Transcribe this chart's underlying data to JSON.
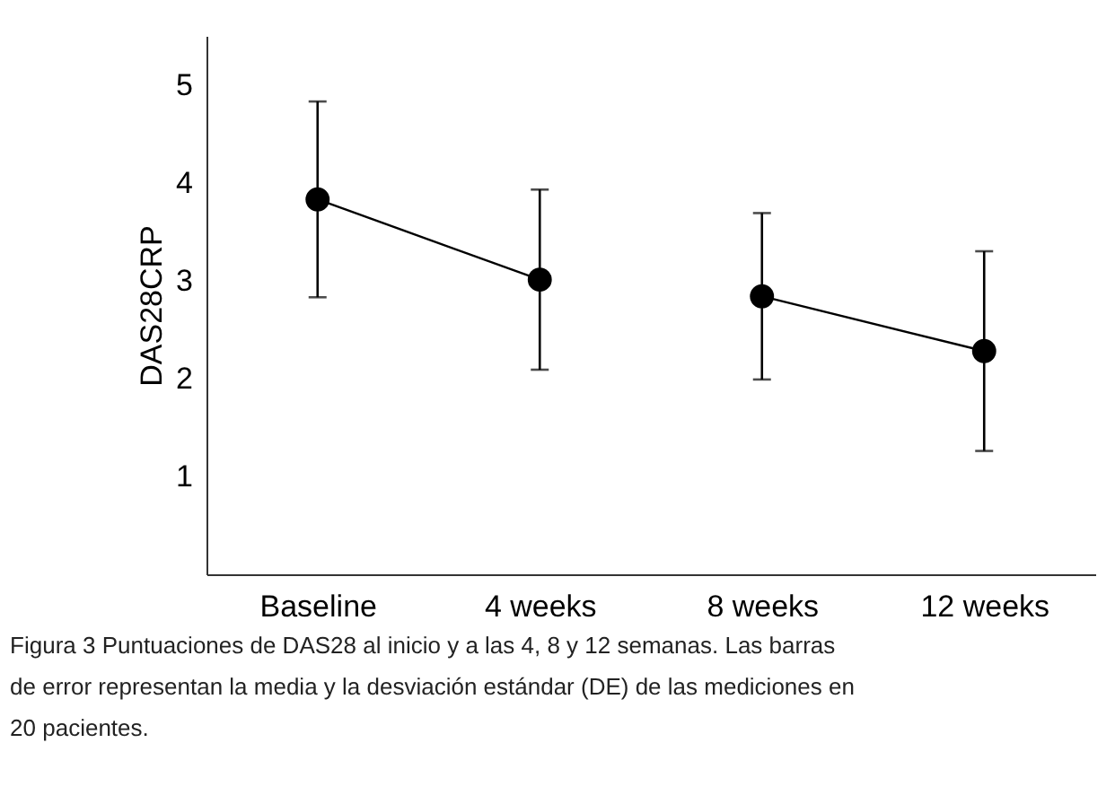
{
  "chart_data": {
    "type": "line",
    "ylabel": "DAS28CRP",
    "categories": [
      "Baseline",
      "4 weeks",
      "8 weeks",
      "12 weeks"
    ],
    "series": [
      {
        "color": "#000000",
        "values": [
          3.83,
          3.01,
          null,
          null
        ],
        "errors": [
          1.0,
          0.92,
          null,
          null
        ]
      },
      {
        "color": "#000000",
        "values": [
          null,
          null,
          2.84,
          2.28
        ],
        "errors": [
          null,
          null,
          0.85,
          1.02
        ]
      }
    ],
    "marker": "circle",
    "line_style": "solid",
    "grid": false,
    "ylim": [
      0,
      5.5
    ],
    "yticks": [
      1,
      2,
      3,
      4,
      5
    ],
    "annotations": [
      "Figura 3 Puntuaciones de DAS28 al inicio y a las 4, 8 y 12 semanas. Las barras de error representan la media y la desviación estándar (DE) de las mediciones en 20 pacientes."
    ]
  }
}
